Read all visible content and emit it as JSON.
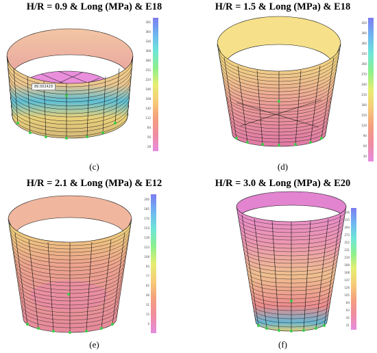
{
  "panels": [
    {
      "title": "H/R = 0.9 & Long (MPa) & E18",
      "sublabel": "(c)",
      "annotation": "89.002429",
      "legend_ticks": [
        "392",
        "364",
        "336",
        "308",
        "280",
        "252",
        "224",
        "196",
        "168",
        "140",
        "112",
        "84",
        "56",
        "28"
      ]
    },
    {
      "title": "H/R = 1.5 & Long (MPa) & E18",
      "sublabel": "(d)",
      "legend_ticks": [
        "420",
        "390",
        "360",
        "330",
        "300",
        "270",
        "240",
        "210",
        "180",
        "150",
        "120",
        "90",
        "60",
        "30"
      ]
    },
    {
      "title": "H/R = 2.1 & Long (MPa) & E12",
      "sublabel": "(e)",
      "legend_ticks": [
        "200",
        "185",
        "170",
        "154",
        "139",
        "123",
        "108",
        "93",
        "77",
        "62",
        "46",
        "31",
        "15",
        "0"
      ]
    },
    {
      "title": "H/R = 3.0 & Long (MPa) & E20",
      "sublabel": "(f)",
      "legend_ticks": [
        "336",
        "315",
        "294",
        "273",
        "252",
        "231",
        "210",
        "189",
        "168",
        "147",
        "126",
        "105",
        "84",
        "63",
        "42",
        "21"
      ]
    }
  ],
  "colors": {
    "wall_top": "#f1d27a",
    "wall_bottom": "#e88a8a",
    "base": "#e98fdc",
    "grid": "#111111",
    "node": "#3dcc4a"
  }
}
